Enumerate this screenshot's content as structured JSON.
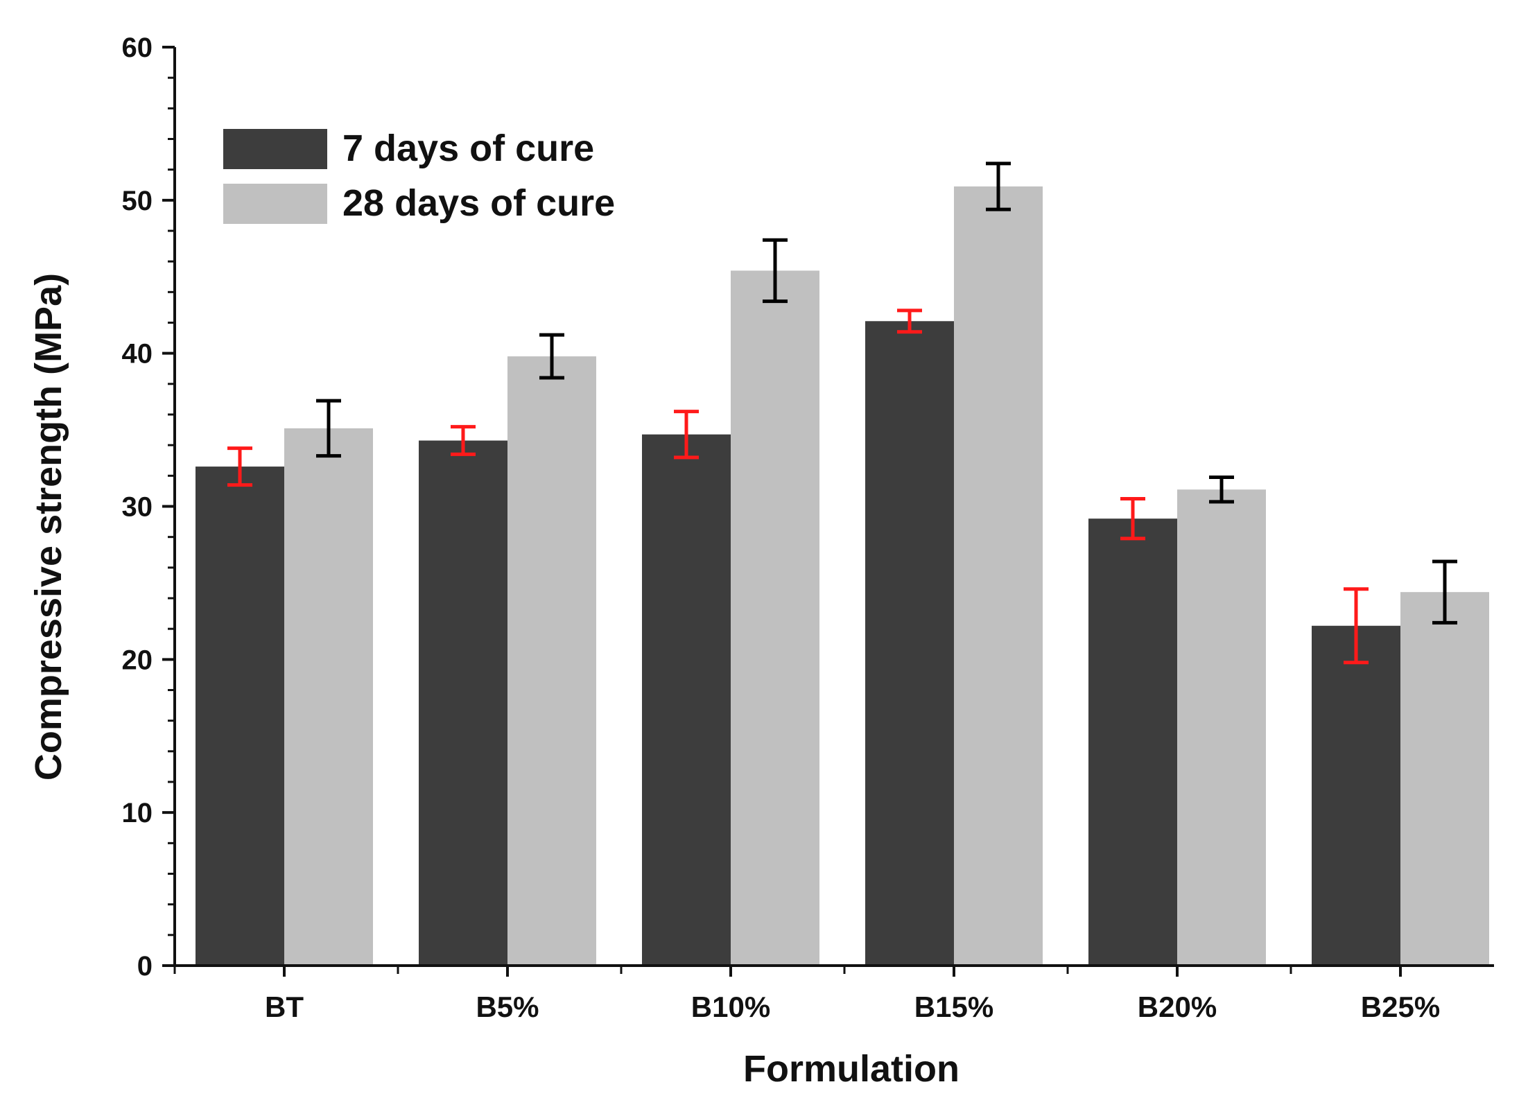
{
  "chart_data": {
    "type": "bar",
    "title": "",
    "xlabel": "Formulation",
    "ylabel": "Compressive strength (MPa)",
    "ylim": [
      0,
      60
    ],
    "yticks": [
      0,
      10,
      20,
      30,
      40,
      50,
      60
    ],
    "categories": [
      "BT",
      "B5%",
      "B10%",
      "B15%",
      "B20%",
      "B25%"
    ],
    "legend_position": "top-left",
    "series": [
      {
        "name": "7 days of cure",
        "color": "#3d3d3d",
        "error_color": "#ff1a1a",
        "values": [
          32.6,
          34.3,
          34.7,
          42.1,
          29.2,
          22.2
        ],
        "errors": [
          1.2,
          0.9,
          1.5,
          0.7,
          1.3,
          2.4
        ]
      },
      {
        "name": "28 days of cure",
        "color": "#c0c0c0",
        "error_color": "#000000",
        "values": [
          35.1,
          39.8,
          45.4,
          50.9,
          31.1,
          24.4
        ],
        "errors": [
          1.8,
          1.4,
          2.0,
          1.5,
          0.8,
          2.0
        ]
      }
    ]
  }
}
